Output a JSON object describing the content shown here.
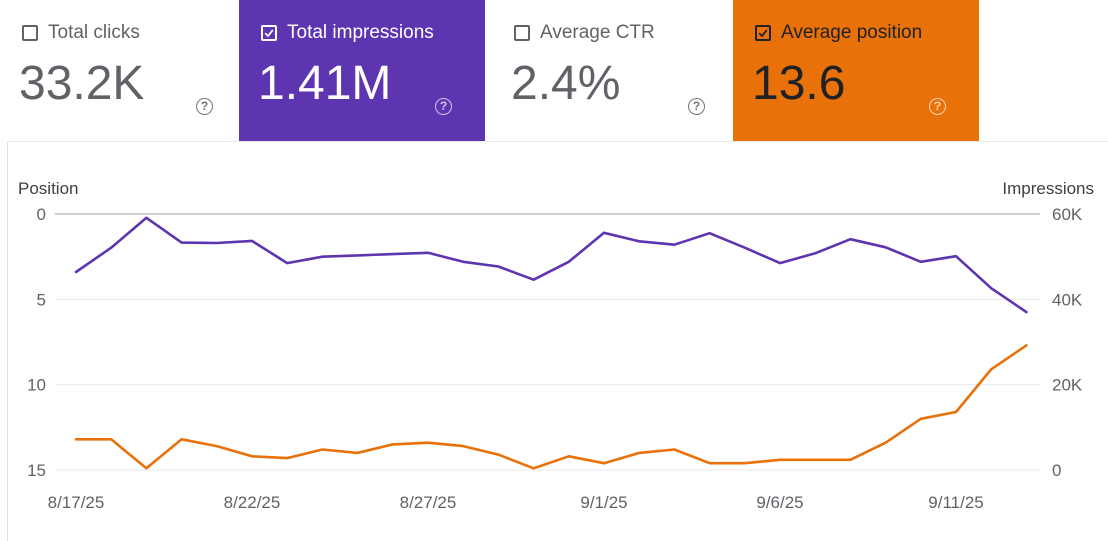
{
  "cards": {
    "clicks": {
      "label": "Total clicks",
      "value": "33.2K",
      "checked": false
    },
    "impressions": {
      "label": "Total impressions",
      "value": "1.41M",
      "checked": true,
      "color": "#5e35b1"
    },
    "ctr": {
      "label": "Average CTR",
      "value": "2.4%",
      "checked": false
    },
    "position": {
      "label": "Average position",
      "value": "13.6",
      "checked": true,
      "color": "#e8710a"
    }
  },
  "chart_data": {
    "type": "line",
    "left_axis_title": "Position",
    "right_axis_title": "Impressions",
    "left_ticks": [
      "0",
      "5",
      "10",
      "15"
    ],
    "right_ticks": [
      "60K",
      "40K",
      "20K",
      "0"
    ],
    "left_range": [
      0,
      15
    ],
    "left_inverted": true,
    "right_range": [
      0,
      60000
    ],
    "x_tick_labels": [
      "8/17/25",
      "8/22/25",
      "8/27/25",
      "9/1/25",
      "9/6/25",
      "9/11/25"
    ],
    "x": [
      "8/17/25",
      "8/18/25",
      "8/19/25",
      "8/20/25",
      "8/21/25",
      "8/22/25",
      "8/23/25",
      "8/24/25",
      "8/25/25",
      "8/26/25",
      "8/27/25",
      "8/28/25",
      "8/29/25",
      "8/30/25",
      "8/31/25",
      "9/1/25",
      "9/2/25",
      "9/3/25",
      "9/4/25",
      "9/5/25",
      "9/6/25",
      "9/7/25",
      "9/8/25",
      "9/9/25",
      "9/10/25",
      "9/11/25",
      "9/12/25",
      "9/13/25"
    ],
    "series": [
      {
        "name": "Impressions",
        "axis": "right",
        "color": "#5e35b1",
        "values": [
          46400,
          52100,
          59100,
          53300,
          53200,
          53700,
          48500,
          50000,
          50300,
          50600,
          50900,
          48800,
          47700,
          44600,
          48800,
          55600,
          53600,
          52800,
          55500,
          52100,
          48500,
          50800,
          54100,
          52200,
          48800,
          50100,
          42600,
          37000
        ]
      },
      {
        "name": "Position",
        "axis": "left",
        "color": "#e8710a",
        "values": [
          13.2,
          13.2,
          14.9,
          13.2,
          13.6,
          14.2,
          14.3,
          13.8,
          14.0,
          13.5,
          13.4,
          13.6,
          14.1,
          14.9,
          14.2,
          14.6,
          14.0,
          13.8,
          14.6,
          14.6,
          14.4,
          14.4,
          14.4,
          13.4,
          12.0,
          11.6,
          9.1,
          7.7
        ]
      }
    ],
    "grid": true
  }
}
